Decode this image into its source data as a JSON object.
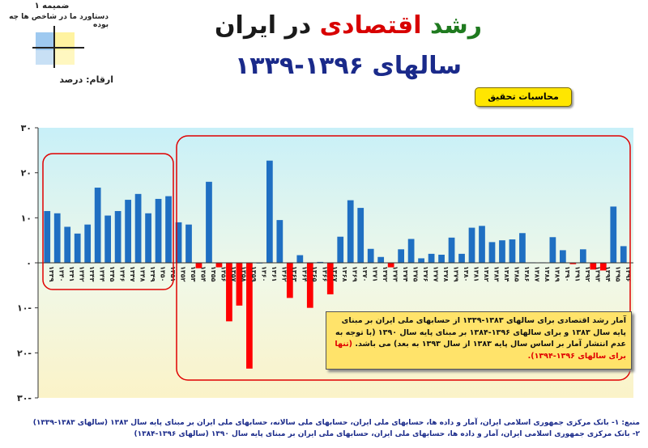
{
  "header": {
    "appendix": "ضمیمه ۱",
    "subtitle": "دستاورد ما در شاخص ها چه بوده",
    "title_part1": "رشد",
    "title_part2": "اقتصادی",
    "title_part3": "در ایران",
    "title_line2": "سالهای ۱۳۹۶-۱۳۳۹",
    "units": "ارقام: درصد",
    "research_badge": "محاسبات تحقیق"
  },
  "colors": {
    "positive_bar": "#1f6fc2",
    "negative_bar": "#ff0000",
    "title_green": "#1f7a1f",
    "title_red": "#d80000",
    "title_dark": "#1a1a1a",
    "title_blue": "#1a2a8a",
    "frame_red": "#e00000",
    "note_bg": "#ffe36a"
  },
  "note": {
    "text_main": "آمار رشد اقتصادی برای سالهای ۱۳۸۳-۱۳۳۹ از حسابهای ملی ایران بر مبنای پایه سال ۱۳۸۳ و برای سالهای ۱۳۹۶-۱۳۸۴ بر مبنای پایه سال ۱۳۹۰ (با توجه به عدم انتشار آمار بر اساس سال پایه ۱۳۸۳ از سال ۱۳۹۳ به بعد) می باشد.",
    "text_highlight": "(تنها برای سالهای ۱۳۹۶-۱۳۹۴)."
  },
  "sources": {
    "line1": "منبع: ۱- بانک مرکزی جمهوری اسلامی ایران، آمار و داده ها، حسابهای ملی ایران، حسابهای ملی سالانه، حسابهای ملی ایران بر مبنای پایه سال ۱۳۸۳ (سالهای ۱۳۸۳-۱۳۳۹)",
    "line2": "۲- بانک مرکزی جمهوری اسلامی ایران، آمار و داده ها، حسابهای ملی ایران، حسابهای ملی ایران بر مبنای پایه سال ۱۳۹۰ (سالهای ۱۳۹۶-۱۳۸۴)"
  },
  "chart_data": {
    "type": "bar",
    "title": "رشد اقتصادی در ایران سالهای ۱۳۹۶-۱۳۳۹",
    "ylabel": "ارقام: درصد",
    "ylim": [
      -30,
      30
    ],
    "yticks": [
      "۳۰",
      "۲۰",
      "۱۰",
      "۰",
      "۱۰-",
      "۲۰-",
      "۳۰-"
    ],
    "ytick_values": [
      30,
      20,
      10,
      0,
      -10,
      -20,
      -30
    ],
    "categories": [
      "۱۳۳۹",
      "۱۳۴۰",
      "۱۳۴۱",
      "۱۳۴۲",
      "۱۳۴۳",
      "۱۳۴۴",
      "۱۳۴۵",
      "۱۳۴۶",
      "۱۳۴۷",
      "۱۳۴۸",
      "۱۳۴۹",
      "۱۳۵۰",
      "۱۳۵۱",
      "۱۳۵۲",
      "۱۳۵۳",
      "۱۳۵۴",
      "۱۳۵۵",
      "۱۳۵۶",
      "۱۳۵۷",
      "۱۳۵۸",
      "۱۳۵۹",
      "۱۳۶۰",
      "۱۳۶۱",
      "۱۳۶۲",
      "۱۳۶۳",
      "۱۳۶۴",
      "۱۳۶۵",
      "۱۳۶۶",
      "۱۳۶۷",
      "۱۳۶۸",
      "۱۳۶۹",
      "۱۳۷۰",
      "۱۳۷۱",
      "۱۳۷۲",
      "۱۳۷۳",
      "۱۳۷۴",
      "۱۳۷۵",
      "۱۳۷۶",
      "۱۳۷۷",
      "۱۳۷۸",
      "۱۳۷۹",
      "۱۳۸۰",
      "۱۳۸۱",
      "۱۳۸۲",
      "۱۳۸۳",
      "۱۳۸۴",
      "۱۳۸۵",
      "۱۳۸۶",
      "۱۳۸۷",
      "۱۳۸۸",
      "۱۳۸۹",
      "۱۳۹۰",
      "۱۳۹۱",
      "۱۳۹۲",
      "۱۳۹۳",
      "۱۳۹۴",
      "۱۳۹۵",
      "۱۳۹۶"
    ],
    "values": [
      11.5,
      11,
      8,
      6.5,
      8.5,
      16.7,
      10.5,
      11.5,
      14,
      15.3,
      11,
      14.2,
      14.8,
      9,
      8.5,
      -1.2,
      18,
      -1,
      -13,
      -9.5,
      -23.5,
      0,
      22.7,
      9.5,
      -7.8,
      1.7,
      -10,
      0.2,
      -7,
      5.8,
      13.9,
      12.2,
      3.1,
      1.3,
      -1,
      3,
      5.3,
      1,
      2,
      1.8,
      5.6,
      2,
      7.8,
      8.2,
      4.6,
      5,
      5.2,
      6.6,
      0.1,
      0.1,
      5.7,
      2.8,
      -0.3,
      3,
      -1.5,
      -1.7,
      12.5,
      3.7
    ],
    "grid": false
  }
}
